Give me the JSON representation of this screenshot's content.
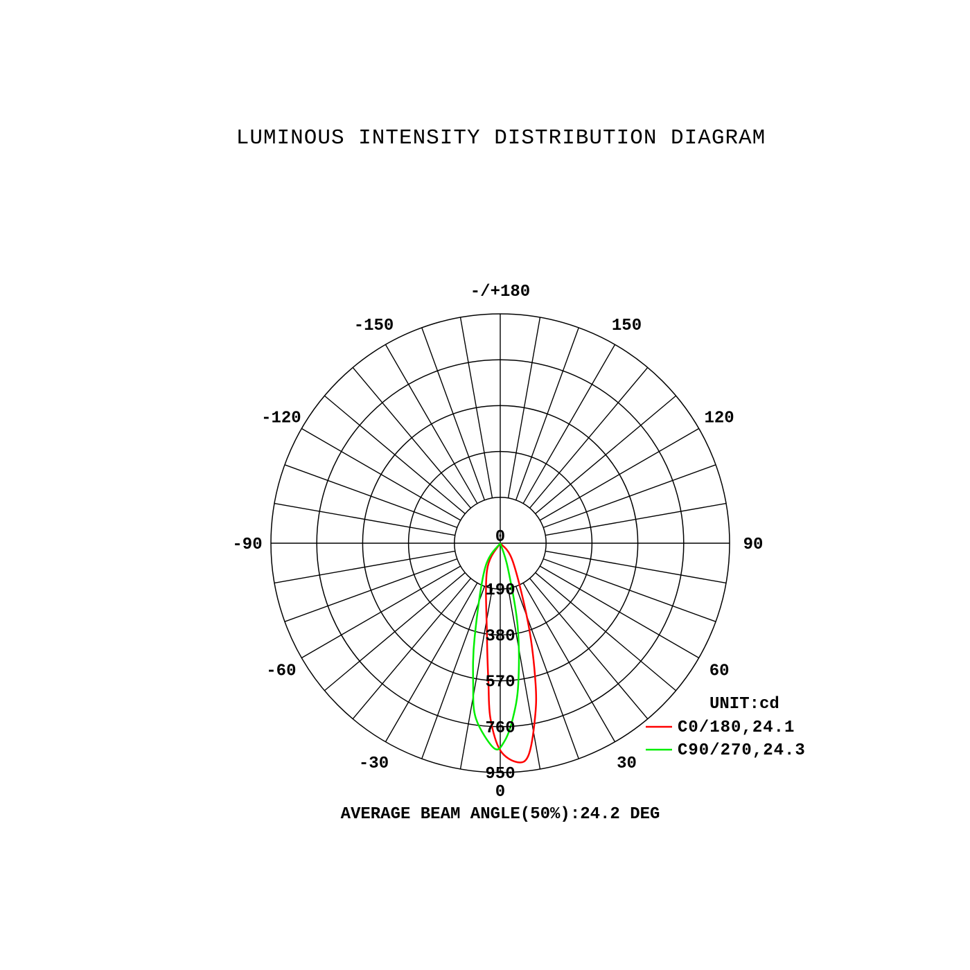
{
  "chart_data": {
    "type": "polar",
    "title": "LUMINOUS INTENSITY DISTRIBUTION DIAGRAM",
    "unit_label": "UNIT:cd",
    "footer": "AVERAGE BEAM ANGLE(50%):24.2 DEG",
    "radial_ticks": [
      190,
      380,
      570,
      760,
      950
    ],
    "radial_max": 950,
    "center_label": "0",
    "angle_step_deg": 10,
    "angle_labels": [
      {
        "angle": 0,
        "text": "0"
      },
      {
        "angle": 30,
        "text": "30"
      },
      {
        "angle": 60,
        "text": "60"
      },
      {
        "angle": 90,
        "text": "90"
      },
      {
        "angle": 120,
        "text": "120"
      },
      {
        "angle": 150,
        "text": "150"
      },
      {
        "angle": 180,
        "text": "-/+180"
      },
      {
        "angle": -150,
        "text": "-150"
      },
      {
        "angle": -120,
        "text": "-120"
      },
      {
        "angle": -90,
        "text": "-90"
      },
      {
        "angle": -60,
        "text": "-60"
      },
      {
        "angle": -30,
        "text": "-30"
      }
    ],
    "series": [
      {
        "name": "C0/180,24.1",
        "color": "#ff0000",
        "points": [
          [
            -40,
            0
          ],
          [
            -26,
            125
          ],
          [
            -8,
            394
          ],
          [
            -4.8,
            584
          ],
          [
            -3.2,
            727
          ],
          [
            0,
            858
          ],
          [
            4.5,
            910
          ],
          [
            7.6,
            886
          ],
          [
            11.2,
            740
          ],
          [
            14.1,
            601
          ],
          [
            19,
            361
          ],
          [
            34.7,
            91
          ],
          [
            50,
            0
          ]
        ]
      },
      {
        "name": "C90/270,24.3",
        "color": "#00ee00",
        "points": [
          [
            -45,
            0
          ],
          [
            -31.4,
            121
          ],
          [
            -15.2,
            405
          ],
          [
            -10.9,
            593
          ],
          [
            -7.9,
            733
          ],
          [
            -1.7,
            850
          ],
          [
            1.2,
            821
          ],
          [
            4.1,
            728
          ],
          [
            7.3,
            588
          ],
          [
            11.9,
            349
          ],
          [
            17,
            108
          ],
          [
            30,
            0
          ]
        ]
      }
    ]
  }
}
